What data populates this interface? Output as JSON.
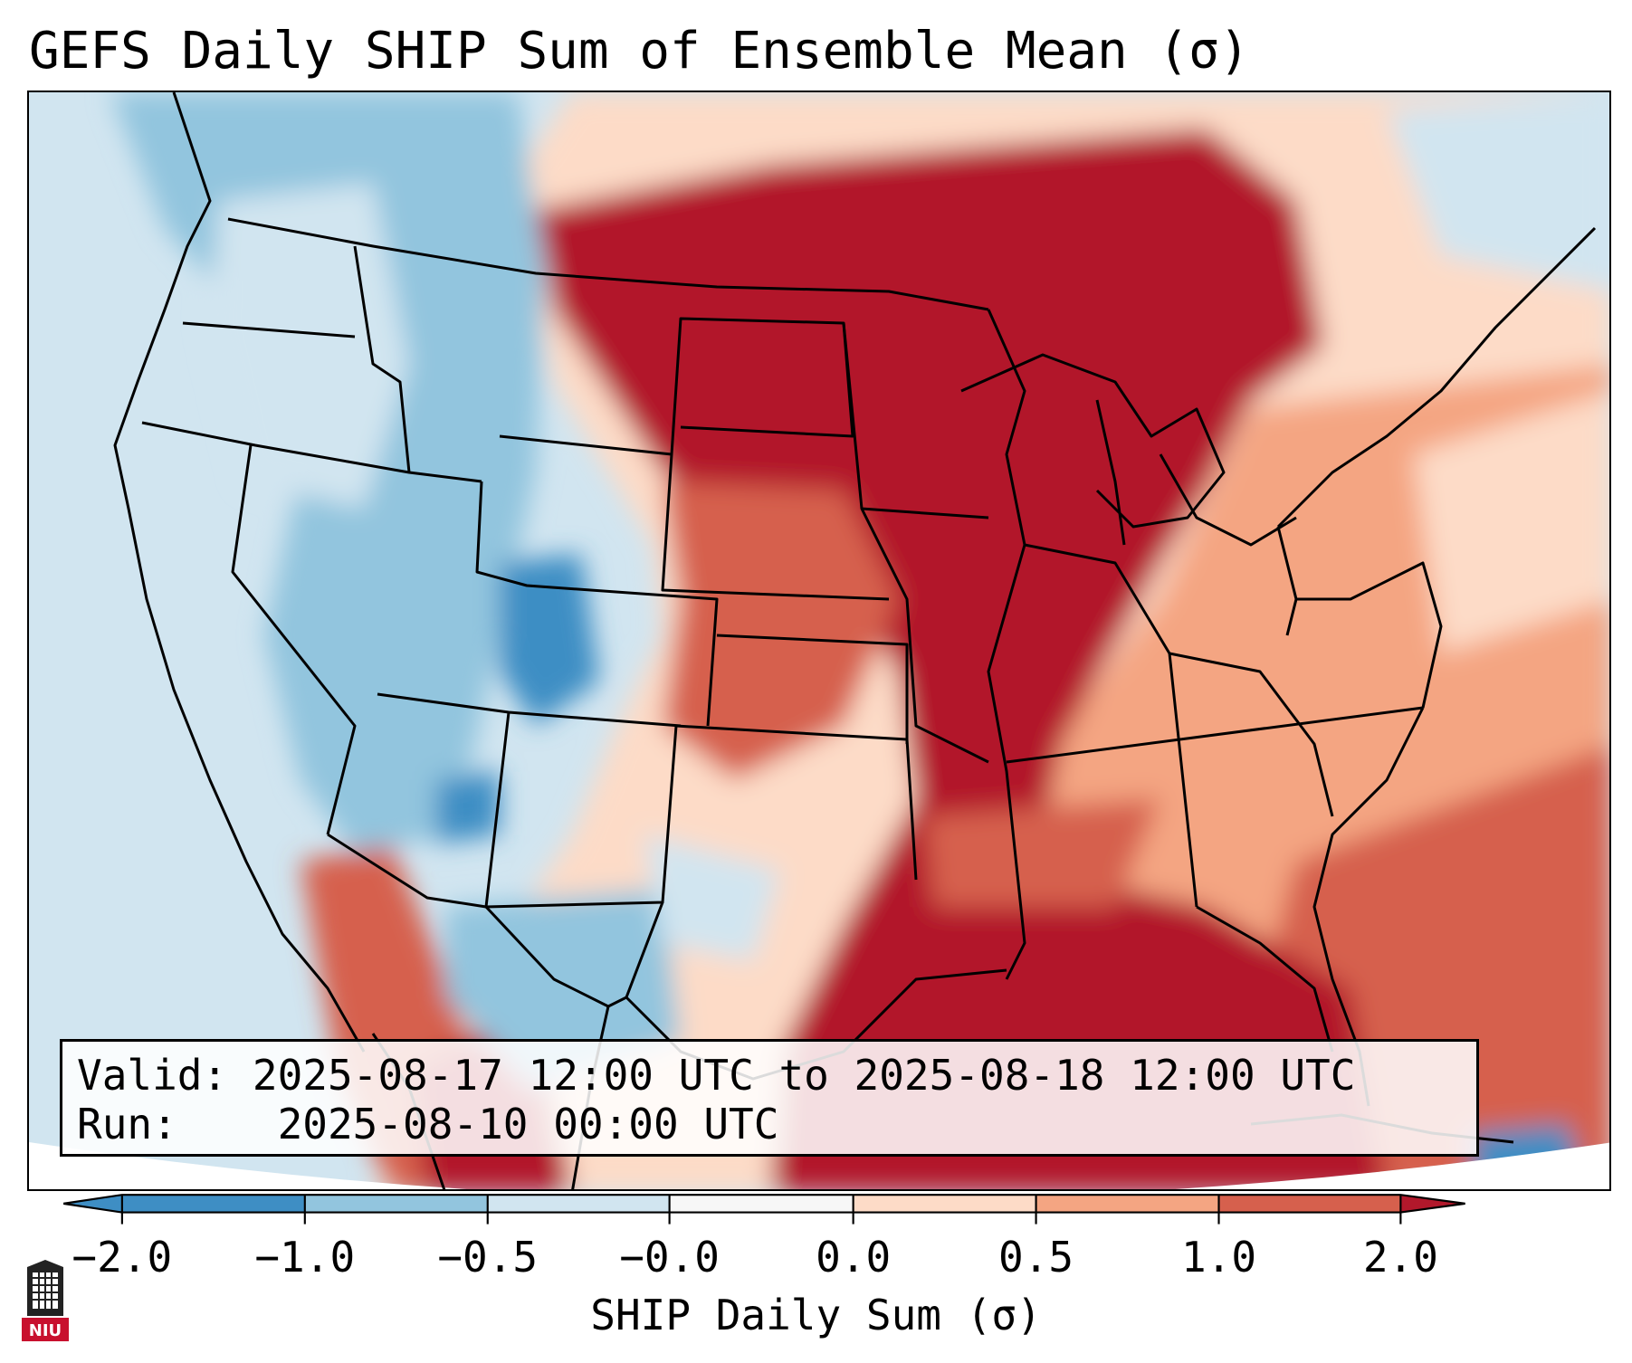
{
  "title": "GEFS Daily SHIP Sum of Ensemble Mean (σ)",
  "info": {
    "valid_label": "Valid:",
    "valid_value": "2025-08-17 12:00 UTC to 2025-08-18 12:00 UTC",
    "run_label": "Run:",
    "run_value": "2025-08-10 00:00 UTC"
  },
  "colorbar": {
    "label": "SHIP Daily Sum (σ)",
    "ticks": [
      "−2.0",
      "−1.0",
      "−0.5",
      "−0.0",
      "0.0",
      "0.5",
      "1.0",
      "2.0"
    ],
    "colors": [
      "#3e8ec4",
      "#92c5de",
      "#d1e5f0",
      "#f7f7f7",
      "#fddbc7",
      "#f4a582",
      "#d6604d",
      "#b2182b"
    ]
  },
  "logo": {
    "text": "NIU",
    "color": "#c8102e"
  }
}
